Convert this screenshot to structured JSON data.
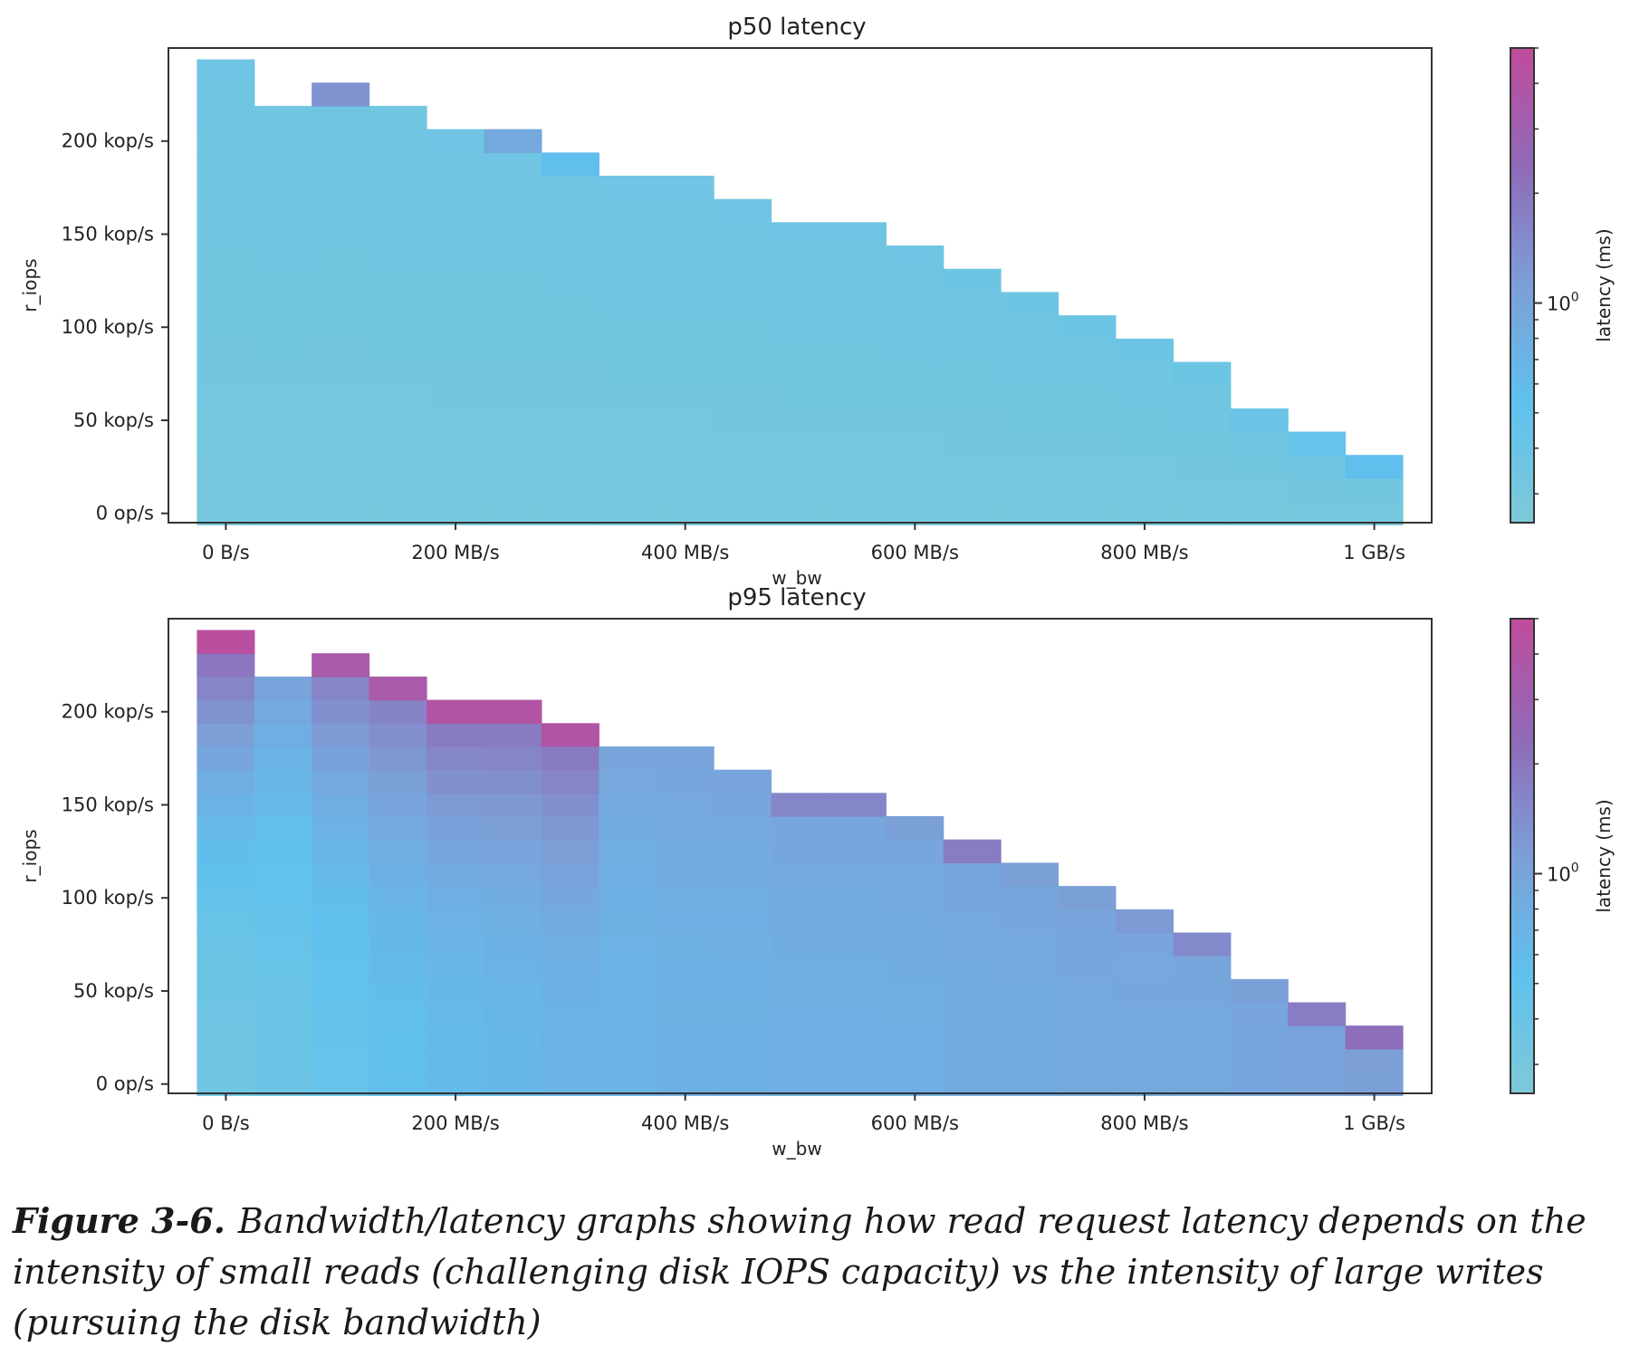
{
  "chart_data": [
    {
      "type": "heatmap",
      "title": "p50 latency",
      "xlabel": "w_bw",
      "ylabel": "r_iops",
      "colorbar_label": "latency (ms)",
      "colorbar_tick": "10",
      "colorbar_tick_exp": "0",
      "colorbar_scale": "log",
      "xlim": [
        -50,
        1050
      ],
      "ylim": [
        -5,
        250
      ],
      "x_ticks": [
        0,
        200,
        400,
        600,
        800,
        1000
      ],
      "x_tick_labels": [
        "0 B/s",
        "200 MB/s",
        "400 MB/s",
        "600 MB/s",
        "800 MB/s",
        "1 GB/s"
      ],
      "y_ticks": [
        0,
        50,
        100,
        150,
        200
      ],
      "y_tick_labels": [
        "0 op/s",
        "50 kop/s",
        "100 kop/s",
        "150 kop/s",
        "200 kop/s"
      ],
      "x_centers": [
        0,
        50,
        100,
        150,
        200,
        250,
        300,
        350,
        400,
        450,
        500,
        550,
        600,
        650,
        700,
        750,
        800,
        850,
        900,
        950,
        1000
      ],
      "y_step": 12.5,
      "column_max_iops": [
        237,
        212,
        225,
        212,
        200,
        200,
        187,
        175,
        175,
        162,
        150,
        150,
        137,
        125,
        112,
        100,
        87,
        75,
        50,
        37,
        25
      ],
      "base_latency": 0.3,
      "top_cell_latency": [
        0.36,
        0.34,
        1.3,
        0.34,
        0.36,
        0.9,
        0.55,
        0.36,
        0.36,
        0.36,
        0.36,
        0.36,
        0.36,
        0.38,
        0.38,
        0.38,
        0.38,
        0.38,
        0.4,
        0.45,
        0.55
      ],
      "latency_range": [
        0.25,
        5.0
      ]
    },
    {
      "type": "heatmap",
      "title": "p95 latency",
      "xlabel": "w_bw",
      "ylabel": "r_iops",
      "colorbar_label": "latency (ms)",
      "colorbar_tick": "10",
      "colorbar_tick_exp": "0",
      "colorbar_scale": "log",
      "xlim": [
        -50,
        1050
      ],
      "ylim": [
        -5,
        250
      ],
      "x_ticks": [
        0,
        200,
        400,
        600,
        800,
        1000
      ],
      "x_tick_labels": [
        "0 B/s",
        "200 MB/s",
        "400 MB/s",
        "600 MB/s",
        "800 MB/s",
        "1 GB/s"
      ],
      "y_ticks": [
        0,
        50,
        100,
        150,
        200
      ],
      "y_tick_labels": [
        "0 op/s",
        "50 kop/s",
        "100 kop/s",
        "150 kop/s",
        "200 kop/s"
      ],
      "x_centers": [
        0,
        50,
        100,
        150,
        200,
        250,
        300,
        350,
        400,
        450,
        500,
        550,
        600,
        650,
        700,
        750,
        800,
        850,
        900,
        950,
        1000
      ],
      "y_step": 12.5,
      "column_max_iops": [
        237,
        212,
        225,
        212,
        200,
        200,
        187,
        175,
        175,
        162,
        150,
        150,
        137,
        125,
        112,
        100,
        87,
        75,
        50,
        37,
        25
      ],
      "column_base_latency": [
        0.35,
        0.4,
        0.45,
        0.55,
        0.6,
        0.65,
        0.7,
        0.7,
        0.75,
        0.75,
        0.8,
        0.8,
        0.8,
        0.85,
        0.85,
        0.9,
        0.9,
        0.9,
        0.95,
        1.0,
        1.1
      ],
      "column_top_latency": [
        4.5,
        1.0,
        3.5,
        3.5,
        4.0,
        4.0,
        4.0,
        1.0,
        1.0,
        1.0,
        1.6,
        1.6,
        1.1,
        1.8,
        1.1,
        1.1,
        1.2,
        1.5,
        1.1,
        1.8,
        2.2
      ],
      "latency_range": [
        0.25,
        5.0
      ]
    }
  ],
  "caption": {
    "label": "Figure 3-6.",
    "text": "Bandwidth/latency graphs showing how read request latency depends on the intensity of small reads (challenging disk IOPS capacity) vs the intensity of large writes (pursuing the disk bandwidth)"
  }
}
